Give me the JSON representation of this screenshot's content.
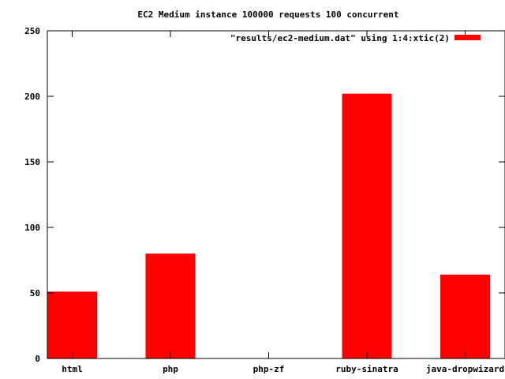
{
  "chart_data": {
    "type": "bar",
    "title": "EC2 Medium instance 100000 requests 100 concurrent",
    "xlabel": "",
    "ylabel": "",
    "categories": [
      "html",
      "php",
      "php-zf",
      "ruby-sinatra",
      "java-dropwizard"
    ],
    "series": [
      {
        "name": "\"results/ec2-medium.dat\" using 1:4:xtic(2)",
        "values": [
          51,
          80,
          0,
          202,
          64
        ],
        "color": "#ff0000"
      }
    ],
    "ylim": [
      0,
      250
    ],
    "yticks": [
      "0",
      "50",
      "100",
      "150",
      "200",
      "250"
    ],
    "grid": false,
    "legend_position": "top-right"
  }
}
